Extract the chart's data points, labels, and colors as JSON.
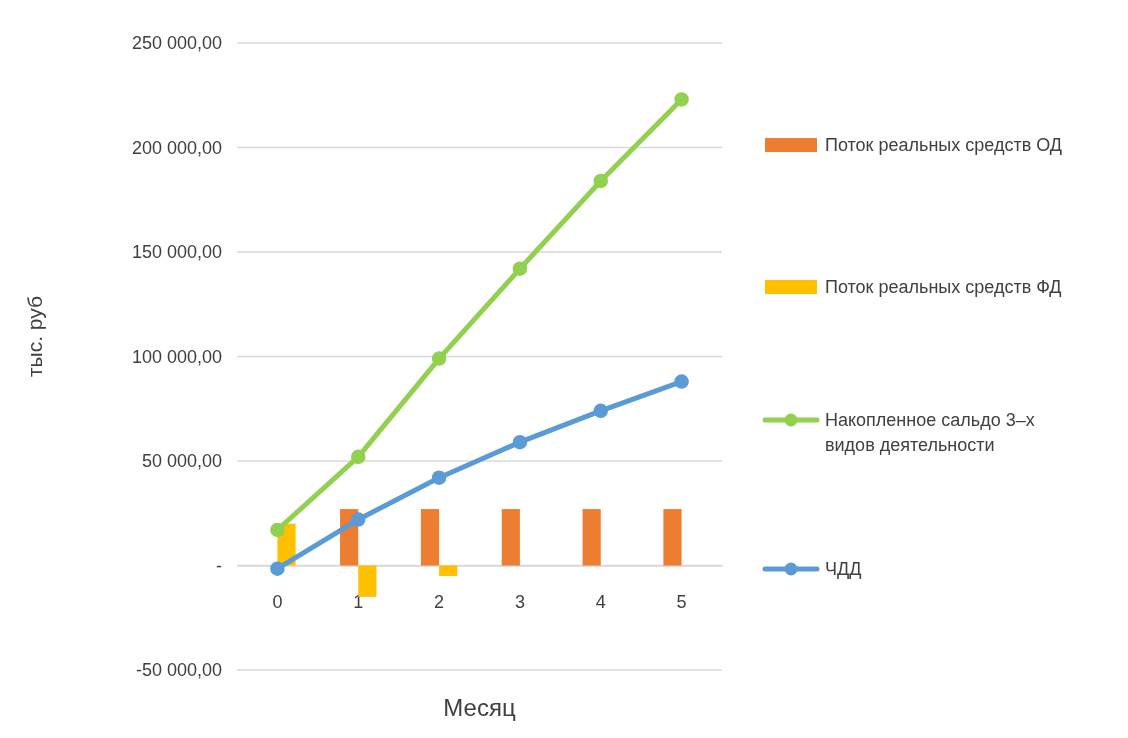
{
  "chart_data": {
    "type": "bar",
    "xlabel": "Месяц",
    "ylabel": "тыс. руб",
    "categories": [
      "0",
      "1",
      "2",
      "3",
      "4",
      "5"
    ],
    "series": [
      {
        "name": "Поток реальных средств ОД",
        "color": "#ed7d31",
        "values": [
          0,
          27000,
          27000,
          27000,
          27000,
          27000
        ]
      },
      {
        "name": "Поток реальных средств ФД",
        "color": "#ffc000",
        "values": [
          20000,
          -15000,
          -5000,
          0,
          0,
          0
        ]
      },
      {
        "name": "Накопленное сальдо 3–х видов деятельности",
        "type": "line",
        "color": "#92d050",
        "values": [
          17000,
          52000,
          99000,
          142000,
          184000,
          223000
        ]
      },
      {
        "name": "ЧДД",
        "type": "line",
        "color": "#5b9bd5",
        "values": [
          -1500,
          22000,
          42000,
          59000,
          74000,
          88000
        ]
      }
    ],
    "ylim": [
      -50000,
      250000
    ],
    "yticks": [
      {
        "value": -50000,
        "label": "-50 000,00"
      },
      {
        "value": 0,
        "label": "-"
      },
      {
        "value": 50000,
        "label": "50 000,00"
      },
      {
        "value": 100000,
        "label": "100 000,00"
      },
      {
        "value": 150000,
        "label": "150 000,00"
      },
      {
        "value": 200000,
        "label": "200 000,00"
      },
      {
        "value": 250000,
        "label": "250 000,00"
      }
    ],
    "grid": "y",
    "legend": "right",
    "marker": "circle"
  }
}
